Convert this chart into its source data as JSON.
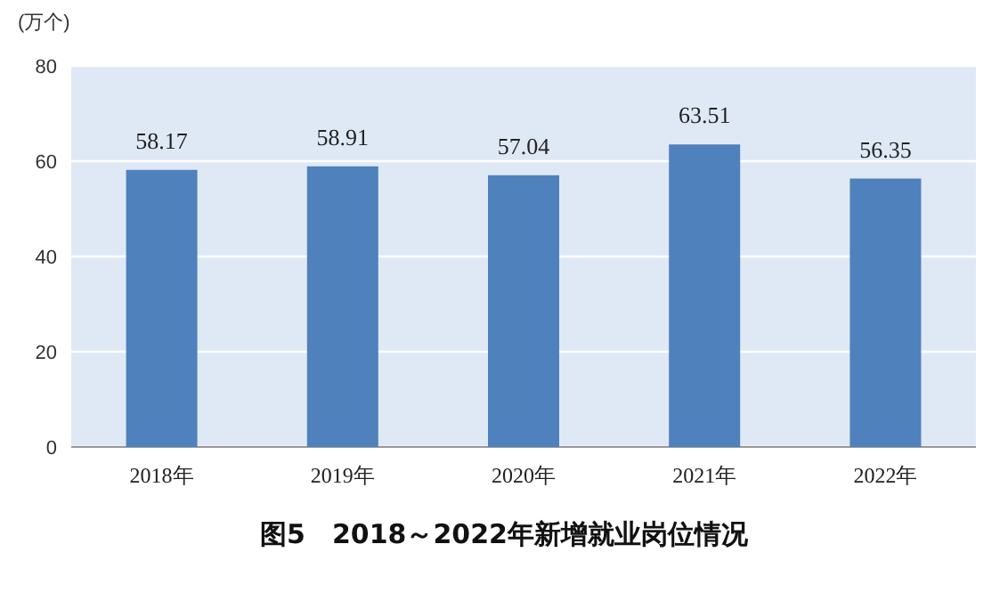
{
  "chart_data": {
    "type": "bar",
    "title": "图5　2018～2022年新增就业岗位情况",
    "ylabel": "(万个)",
    "categories": [
      "2018年",
      "2019年",
      "2020年",
      "2021年",
      "2022年"
    ],
    "values": [
      58.17,
      58.91,
      57.04,
      63.51,
      56.35
    ],
    "color": "#4f81bd",
    "ylim": [
      0,
      80
    ],
    "yticks": [
      0,
      20,
      40,
      60,
      80
    ],
    "grid": "y",
    "data_labels": true
  }
}
